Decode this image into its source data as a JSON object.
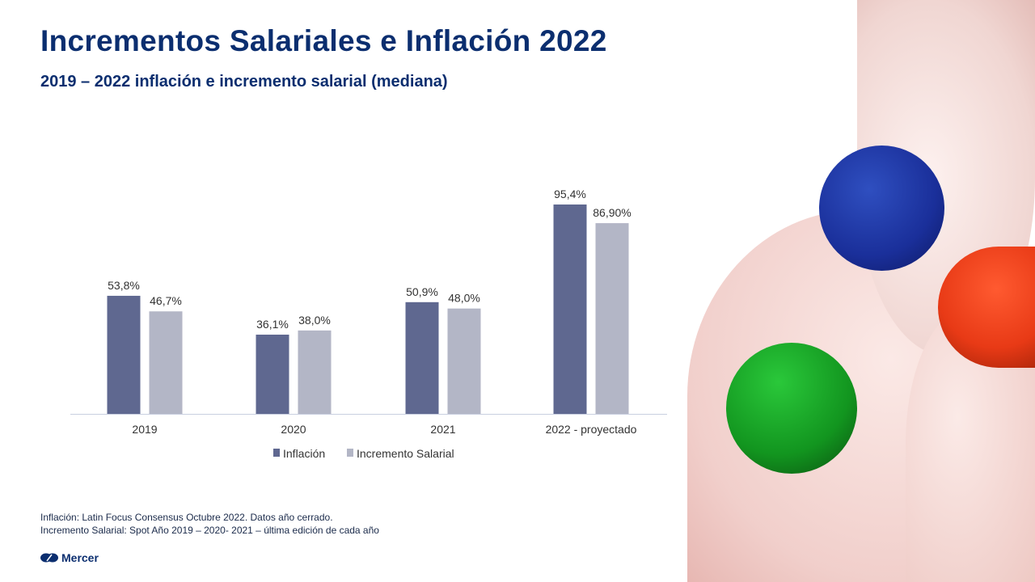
{
  "title": "Incrementos Salariales e Inflación 2022",
  "subtitle": "2019 – 2022 inflación e incremento salarial (mediana)",
  "chart_data": {
    "type": "bar",
    "categories": [
      "2019",
      "2020",
      "2021",
      "2022 - proyectado"
    ],
    "series": [
      {
        "name": "Inflación",
        "values": [
          53.8,
          36.1,
          50.9,
          95.4
        ],
        "labels": [
          "53,8%",
          "36,1%",
          "50,9%",
          "95,4%"
        ],
        "color": "#5f6890"
      },
      {
        "name": "Incremento Salarial",
        "values": [
          46.7,
          38.0,
          48.0,
          86.9
        ],
        "labels": [
          "46,7%",
          "38,0%",
          "48,0%",
          "86,90%"
        ],
        "color": "#b3b6c6"
      }
    ],
    "ylim": [
      0,
      100
    ],
    "legend": "bottom",
    "grid": false
  },
  "footnotes": [
    "Inflación: Latin Focus Consensus Octubre  2022. Datos año cerrado.",
    "Incremento Salarial: Spot Año 2019 – 2020- 2021 – última edición de cada año"
  ],
  "logo": "Mercer"
}
